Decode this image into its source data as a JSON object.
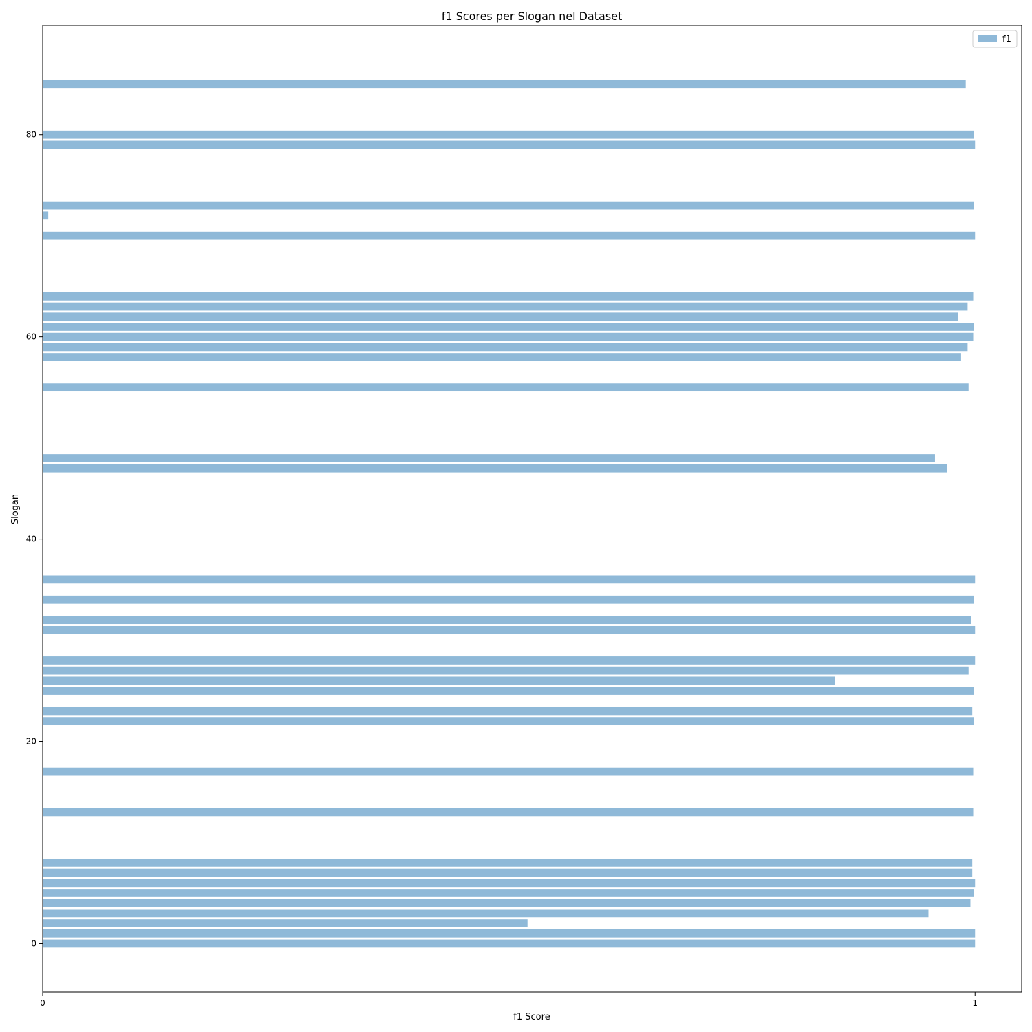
{
  "chart_data": {
    "type": "bar",
    "orientation": "horizontal",
    "title": "f1 Scores per Slogan nel Dataset",
    "xlabel": "f1 Score",
    "ylabel": "Slogan",
    "xlim": [
      0,
      1.05
    ],
    "ylim": [
      -4.8,
      90.8
    ],
    "xticks": [
      0,
      1
    ],
    "yticks": [
      0,
      20,
      40,
      60,
      80
    ],
    "grid": false,
    "legend_position": "top-right",
    "colors": {
      "bar": "#8fb9d8"
    },
    "series": [
      {
        "name": "f1",
        "points": [
          {
            "y": 0,
            "x": 1.0
          },
          {
            "y": 1,
            "x": 1.0
          },
          {
            "y": 2,
            "x": 0.52
          },
          {
            "y": 3,
            "x": 0.95
          },
          {
            "y": 4,
            "x": 0.995
          },
          {
            "y": 5,
            "x": 0.999
          },
          {
            "y": 6,
            "x": 1.0
          },
          {
            "y": 7,
            "x": 0.997
          },
          {
            "y": 8,
            "x": 0.997
          },
          {
            "y": 13,
            "x": 0.998
          },
          {
            "y": 17,
            "x": 0.998
          },
          {
            "y": 22,
            "x": 0.999
          },
          {
            "y": 23,
            "x": 0.997
          },
          {
            "y": 25,
            "x": 0.999
          },
          {
            "y": 26,
            "x": 0.85
          },
          {
            "y": 27,
            "x": 0.993
          },
          {
            "y": 28,
            "x": 1.0
          },
          {
            "y": 31,
            "x": 1.0
          },
          {
            "y": 32,
            "x": 0.996
          },
          {
            "y": 34,
            "x": 0.999
          },
          {
            "y": 36,
            "x": 1.0
          },
          {
            "y": 47,
            "x": 0.97
          },
          {
            "y": 48,
            "x": 0.957
          },
          {
            "y": 55,
            "x": 0.993
          },
          {
            "y": 58,
            "x": 0.985
          },
          {
            "y": 59,
            "x": 0.992
          },
          {
            "y": 60,
            "x": 0.998
          },
          {
            "y": 61,
            "x": 0.999
          },
          {
            "y": 62,
            "x": 0.982
          },
          {
            "y": 63,
            "x": 0.992
          },
          {
            "y": 64,
            "x": 0.998
          },
          {
            "y": 70,
            "x": 1.0
          },
          {
            "y": 72,
            "x": 0.006
          },
          {
            "y": 73,
            "x": 0.999
          },
          {
            "y": 79,
            "x": 1.0
          },
          {
            "y": 80,
            "x": 0.999
          },
          {
            "y": 85,
            "x": 0.99
          }
        ]
      }
    ]
  }
}
